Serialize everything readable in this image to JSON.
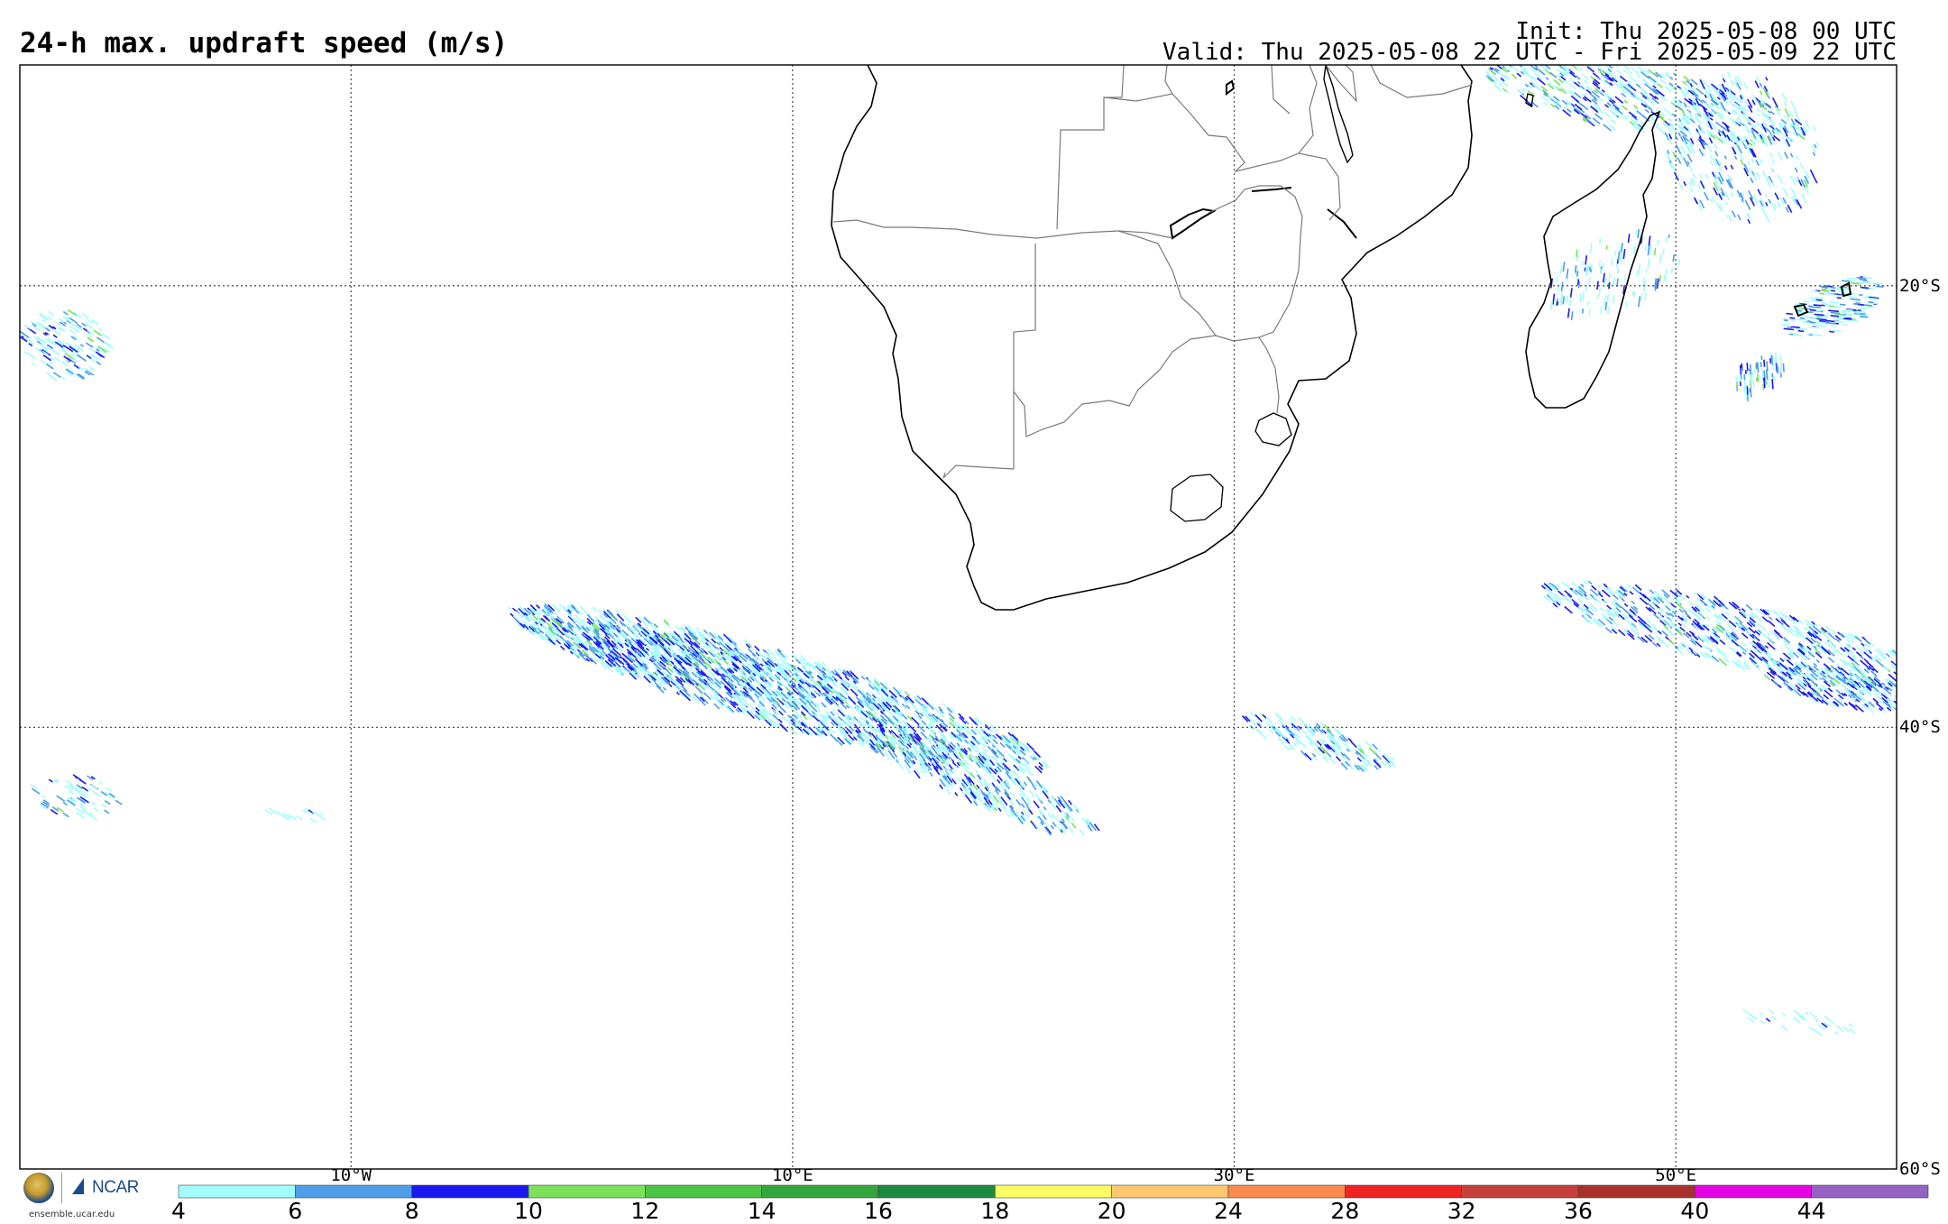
{
  "header": {
    "title": "24-h max. updraft speed (m/s)",
    "init": "Init: Thu 2025-05-08 00 UTC",
    "valid": "Valid: Thu 2025-05-08 22 UTC - Fri 2025-05-09 22 UTC"
  },
  "map": {
    "lon_labels": [
      {
        "value": -10,
        "text": "10°W"
      },
      {
        "value": 10,
        "text": "10°E"
      },
      {
        "value": 30,
        "text": "30°E"
      },
      {
        "value": 50,
        "text": "50°E"
      }
    ],
    "lat_labels": [
      {
        "value": -20,
        "text": "20°S"
      },
      {
        "value": -40,
        "text": "40°S"
      },
      {
        "value": -60,
        "text": "60°S"
      }
    ],
    "extent": {
      "lon_min": -25,
      "lon_max": 60,
      "lat_min": -60,
      "lat_max": -10
    },
    "gridlines": "dotted",
    "colors": {
      "coast": "#000000",
      "borders": "#7a7a7a",
      "grid": "#555555"
    }
  },
  "colorbar": {
    "ticks": [
      "4",
      "6",
      "8",
      "10",
      "12",
      "14",
      "16",
      "18",
      "20",
      "24",
      "28",
      "32",
      "36",
      "40",
      "44"
    ],
    "colors": [
      "#a2fdfe",
      "#4d9de8",
      "#1d17ef",
      "#7ce05a",
      "#4cc544",
      "#33a53a",
      "#1e8a3f",
      "#fdfc62",
      "#fdc86d",
      "#fb8a4e",
      "#ee2324",
      "#c6403d",
      "#a8302d",
      "#e504e3",
      "#9461c5"
    ]
  },
  "logo": {
    "ncar": "NCAR",
    "url": "ensemble.ucar.edu"
  }
}
